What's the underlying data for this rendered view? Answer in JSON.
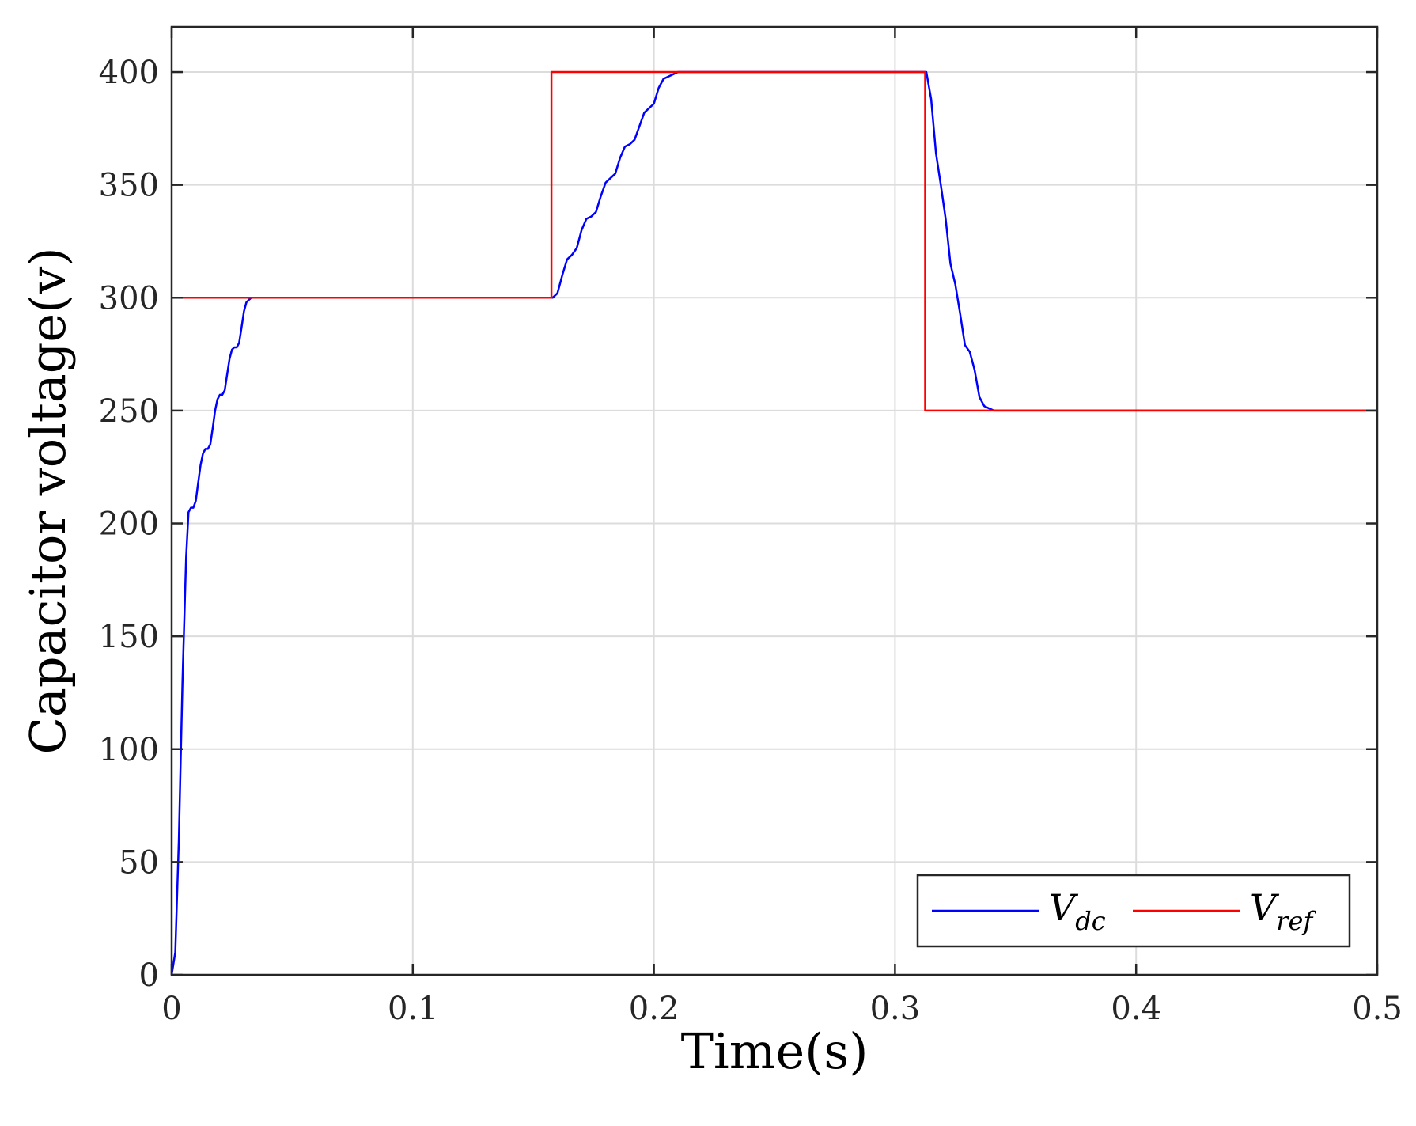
{
  "chart_data": {
    "type": "line",
    "xlabel": "Time(s)",
    "ylabel": "Capacitor voltage(v)",
    "xlim": [
      0,
      0.5
    ],
    "ylim": [
      0,
      420
    ],
    "xticks": [
      0,
      0.1,
      0.2,
      0.3,
      0.4,
      0.5
    ],
    "xtick_labels": [
      "0",
      "0.1",
      "0.2",
      "0.3",
      "0.4",
      "0.5"
    ],
    "yticks": [
      0,
      50,
      100,
      150,
      200,
      250,
      300,
      350,
      400
    ],
    "ytick_labels": [
      "0",
      "50",
      "100",
      "150",
      "200",
      "250",
      "300",
      "350",
      "400"
    ],
    "grid": true,
    "legend_position": "bottom-right",
    "series": [
      {
        "name": "V_dc",
        "legend_main": "V",
        "legend_sub": "dc",
        "color": "#0000ff",
        "x": [
          0,
          0.0015,
          0.003,
          0.0045,
          0.006,
          0.007,
          0.008,
          0.009,
          0.01,
          0.011,
          0.012,
          0.013,
          0.014,
          0.015,
          0.016,
          0.017,
          0.018,
          0.019,
          0.02,
          0.021,
          0.022,
          0.023,
          0.024,
          0.025,
          0.026,
          0.027,
          0.028,
          0.029,
          0.03,
          0.031,
          0.032,
          0.033,
          0.034,
          0.035,
          0.036,
          0.037,
          0.038,
          0.039,
          0.04,
          0.041,
          0.042,
          0.043,
          0.044,
          0.046,
          0.1,
          0.157,
          0.158,
          0.16,
          0.162,
          0.164,
          0.166,
          0.168,
          0.17,
          0.172,
          0.174,
          0.176,
          0.178,
          0.18,
          0.182,
          0.184,
          0.186,
          0.188,
          0.19,
          0.192,
          0.194,
          0.196,
          0.198,
          0.2,
          0.202,
          0.204,
          0.206,
          0.208,
          0.21,
          0.212,
          0.25,
          0.3,
          0.313,
          0.315,
          0.317,
          0.319,
          0.321,
          0.323,
          0.325,
          0.327,
          0.329,
          0.331,
          0.333,
          0.335,
          0.337,
          0.339,
          0.341,
          0.343,
          0.345,
          0.347,
          0.349,
          0.4,
          0.5
        ],
        "y": [
          0,
          10,
          60,
          130,
          185,
          205,
          207,
          207,
          210,
          218,
          226,
          231,
          233,
          233,
          235,
          242,
          250,
          255,
          257,
          257,
          259,
          266,
          273,
          277,
          278,
          278,
          280,
          287,
          294,
          298,
          299,
          300,
          300,
          300,
          300,
          300,
          300,
          300,
          300,
          300,
          300,
          300,
          300,
          300,
          300,
          300,
          300,
          302,
          310,
          317,
          319,
          322,
          330,
          335,
          336,
          338,
          345,
          351,
          353,
          355,
          362,
          367,
          368,
          370,
          376,
          382,
          384,
          386,
          393,
          397,
          398,
          399,
          400,
          400,
          400,
          400,
          400,
          388,
          364,
          350,
          335,
          315,
          306,
          293,
          279,
          276,
          268,
          256,
          252,
          251,
          250,
          250,
          250,
          250,
          250,
          250,
          250
        ]
      },
      {
        "name": "V_ref",
        "legend_main": "V",
        "legend_sub": "ref",
        "color": "#ff0000",
        "x": [
          0,
          0.1575,
          0.1575,
          0.3125,
          0.3125,
          0.5
        ],
        "y": [
          300,
          300,
          400,
          400,
          250,
          250
        ]
      }
    ]
  }
}
